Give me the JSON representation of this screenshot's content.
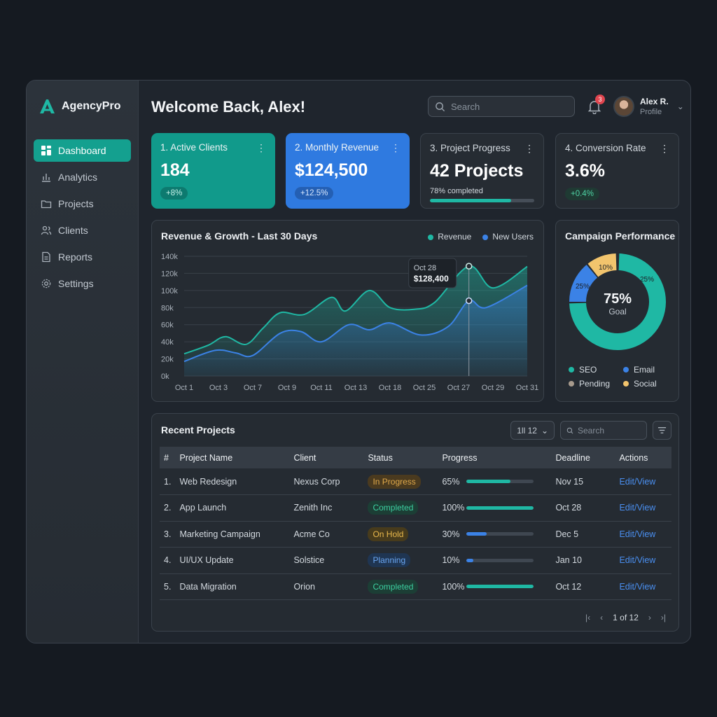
{
  "brand": {
    "name": "AgencyPro"
  },
  "sidebar": {
    "items": [
      {
        "label": "Dashboard",
        "icon": "grid-icon",
        "active": true
      },
      {
        "label": "Analytics",
        "icon": "bar-chart-icon"
      },
      {
        "label": "Projects",
        "icon": "folder-icon"
      },
      {
        "label": "Clients",
        "icon": "users-icon"
      },
      {
        "label": "Reports",
        "icon": "document-icon"
      },
      {
        "label": "Settings",
        "icon": "gear-icon"
      }
    ]
  },
  "header": {
    "title": "Welcome Back, Alex!",
    "search_placeholder": "Search",
    "notifications_count": "3",
    "user_name": "Alex R.",
    "user_role": "Profile"
  },
  "kpis": [
    {
      "title": "1. Active Clients",
      "value": "184",
      "badge": "+8%"
    },
    {
      "title": "2. Monthly Revenue",
      "value": "$124,500",
      "badge": "+12.5%"
    },
    {
      "title": "3. Project Progress",
      "value": "42 Projects",
      "sub": "78% completed",
      "progress": 0.78
    },
    {
      "title": "4. Conversion Rate",
      "value": "3.6%",
      "badge": "+0.4%"
    }
  ],
  "revenue_chart": {
    "title": "Revenue & Growth - Last 30 Days",
    "legend": [
      "Revenue",
      "New Users"
    ],
    "tooltip_date": "Oct 28",
    "tooltip_value": "$128,400"
  },
  "campaign": {
    "title": "Campaign Performance",
    "center_value": "75%",
    "center_label": "Goal",
    "legend": [
      "SEO",
      "Email",
      "Pending",
      "Social"
    ]
  },
  "projects": {
    "title": "Recent Projects",
    "page_size": "1ll 12",
    "search_placeholder": "Search",
    "columns": [
      "#",
      "Project Name",
      "Client",
      "Status",
      "Progress",
      "Deadline",
      "Actions"
    ],
    "rows": [
      {
        "num": "1.",
        "name": "Web Redesign",
        "client": "Nexus Corp",
        "status": "In Progress",
        "progress": "65%",
        "deadline": "Nov 15",
        "action": "Edit/View"
      },
      {
        "num": "2.",
        "name": "App Launch",
        "client": "Zenith Inc",
        "status": "Completed",
        "progress": "100%",
        "deadline": "Oct 28",
        "action": "Edit/View"
      },
      {
        "num": "3.",
        "name": "Marketing Campaign",
        "client": "Acme Co",
        "status": "On Hold",
        "progress": "30%",
        "deadline": "Dec 5",
        "action": "Edit/View"
      },
      {
        "num": "4.",
        "name": "UI/UX Update",
        "client": "Solstice",
        "status": "Planning",
        "progress": "10%",
        "deadline": "Jan 10",
        "action": "Edit/View"
      },
      {
        "num": "5.",
        "name": "Data Migration",
        "client": "Orion",
        "status": "Completed",
        "progress": "100%",
        "deadline": "Oct 12",
        "action": "Edit/View"
      }
    ],
    "pagination": "1 of 12"
  },
  "colors": {
    "teal": "#1fb8a4",
    "blue": "#3b82e6",
    "amber": "#f2c46d",
    "gray": "#a79a8c",
    "in_progress": "#e0a94a",
    "completed": "#3ccfa0",
    "on_hold": "#e8b84c",
    "planning": "#6aa6f2"
  },
  "chart_data": [
    {
      "type": "area",
      "title": "Revenue & Growth - Last 30 Days",
      "xlabel": "",
      "ylabel": "",
      "categories": [
        "Oct 1",
        "Oct 3",
        "Oct 7",
        "Oct 9",
        "Oct 11",
        "Oct 13",
        "Oct 18",
        "Oct 25",
        "Oct 27",
        "Oct 29",
        "Oct 31"
      ],
      "y_ticks": [
        "0k",
        "20k",
        "40k",
        "60k",
        "80k",
        "100k",
        "120k",
        "140k"
      ],
      "ylim": [
        0,
        140000
      ],
      "series": [
        {
          "name": "Revenue",
          "color": "#1fb8a4",
          "points": [
            [
              0,
              26000
            ],
            [
              0.7,
              36000
            ],
            [
              1.2,
              46000
            ],
            [
              1.8,
              37000
            ],
            [
              2.3,
              56000
            ],
            [
              2.8,
              74000
            ],
            [
              3.5,
              72000
            ],
            [
              4.3,
              92000
            ],
            [
              4.7,
              76000
            ],
            [
              5.4,
              100000
            ],
            [
              6.0,
              80000
            ],
            [
              6.7,
              78000
            ],
            [
              7.3,
              86000
            ],
            [
              8.3,
              128400
            ],
            [
              9.0,
              103000
            ],
            [
              10.0,
              128000
            ]
          ]
        },
        {
          "name": "New Users",
          "color": "#3b82e6",
          "points": [
            [
              0,
              17000
            ],
            [
              0.9,
              30000
            ],
            [
              1.5,
              27000
            ],
            [
              2.0,
              24000
            ],
            [
              2.8,
              50000
            ],
            [
              3.4,
              52000
            ],
            [
              4.0,
              40000
            ],
            [
              4.8,
              60000
            ],
            [
              5.4,
              54000
            ],
            [
              6.0,
              62000
            ],
            [
              6.9,
              48000
            ],
            [
              7.7,
              58000
            ],
            [
              8.3,
              88000
            ],
            [
              8.8,
              80000
            ],
            [
              10.0,
              106000
            ]
          ]
        }
      ],
      "highlight": {
        "x_label": "Oct 28",
        "value": "$128,400"
      },
      "legend": "top-right"
    },
    {
      "type": "pie",
      "title": "Campaign Performance",
      "slices": [
        {
          "label": "SEO",
          "value": 75,
          "shown": "",
          "color": "#1fb8a4"
        },
        {
          "label": "Email",
          "value": 25,
          "shown": "25%",
          "color": "#3b82e6"
        },
        {
          "label": "Social",
          "value": 10,
          "shown": "10%",
          "color": "#f2c46d"
        }
      ],
      "inner_labels": [
        "25%",
        "10%",
        "25%"
      ],
      "center": "75%"
    }
  ]
}
